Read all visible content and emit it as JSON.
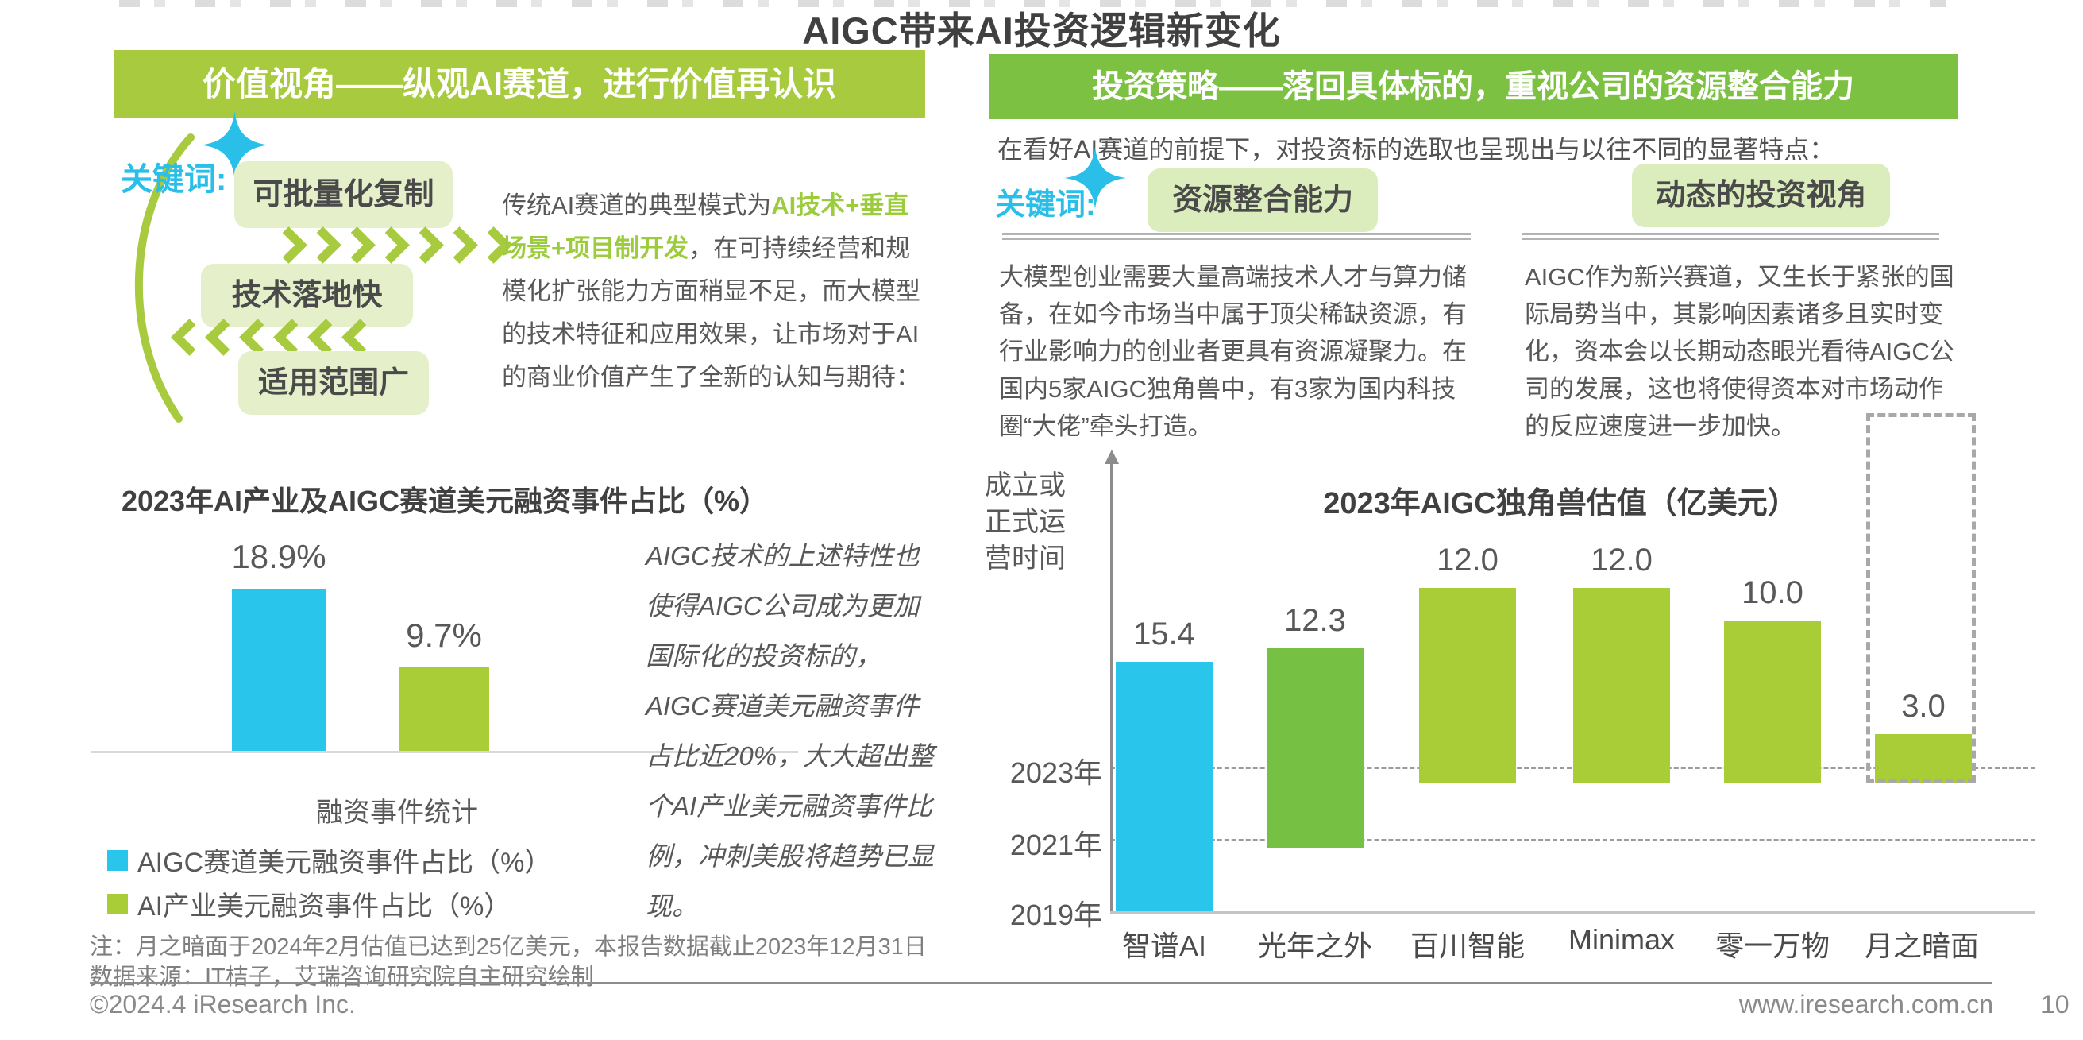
{
  "page": {
    "title": "AIGC带来AI投资逻辑新变化",
    "colors": {
      "left_header_bg": "#a7ca3e",
      "right_header_bg": "#7cc142",
      "accent_cyan": "#29bfe8",
      "bar_cyan": "#2ac5ea",
      "bar_green_mid": "#76c143",
      "bar_green_light": "#a9cd36",
      "keyword_box_bg_left": "#e5f0cb",
      "keyword_box_bg_right": "#dcedbd",
      "text_dark": "#595757",
      "text_gray": "#7f7f7f"
    },
    "icons": {
      "left_sparkle": "sparkle-icon",
      "right_sparkle": "sparkle-icon",
      "arc": "arc-decoration",
      "chevrons_forward": "chevrons-right",
      "chevrons_backward": "chevrons-left",
      "y_axis_arrow": "up-arrow-icon"
    }
  },
  "left_panel": {
    "header": "价值视角——纵观AI赛道，进行价值再认识",
    "keyword_label": "关键词:",
    "keywords": [
      "可批量化复制",
      "技术落地快",
      "适用范围广"
    ],
    "paragraph": {
      "before": "传统AI赛道的典型模式为",
      "highlight": "AI技术+垂直场景+项目制开发",
      "after": "，在可持续经营和规模化扩张能力方面稍显不足，而大模型的技术特征和应用效果，让市场对于AI的商业价值产生了全新的认知与期待："
    }
  },
  "right_panel": {
    "header": "投资策略——落回具体标的，重视公司的资源整合能力",
    "intro": "在看好AI赛道的前提下，对投资标的选取也呈现出与以往不同的显著特点：",
    "keyword_label": "关键词:",
    "keywords": [
      "资源整合能力",
      "动态的投资视角"
    ],
    "paragraph_left": "大模型创业需要大量高端技术人才与算力储备，在如今市场当中属于顶尖稀缺资源，有行业影响力的创业者更具有资源凝聚力。在国内5家AIGC独角兽中，有3家为国内科技圈“大佬”牵头打造。",
    "paragraph_right": "AIGC作为新兴赛道，又生长于紧张的国际局势当中，其影响因素诸多且实时变化，资本会以长期动态眼光看待AIGC公司的发展，这也将使得资本对市场动作的反应速度进一步加快。"
  },
  "chart_data": [
    {
      "type": "bar",
      "title": "2023年AI产业及AIGC赛道美元融资事件占比（%）",
      "categories": [
        "AIGC赛道",
        "AI产业"
      ],
      "values": [
        18.9,
        9.7
      ],
      "value_labels": [
        "18.9%",
        "9.7%"
      ],
      "xlabel": "融资事件统计",
      "ylabel": "",
      "ylim": [
        0,
        20
      ],
      "grid": false,
      "bar_colors": [
        "#2ac5ea",
        "#a9cd36"
      ],
      "legend": [
        "AIGC赛道美元融资事件占比（%）",
        "AI产业美元融资事件占比（%）"
      ],
      "legend_position": "bottom-left",
      "annotation": "AIGC技术的上述特性也使得AIGC公司成为更加国际化的投资标的，AIGC赛道美元融资事件占比近20%，大大超出整个AI产业美元融资事件比例，冲刺美股将趋势已显现。"
    },
    {
      "type": "bar",
      "title": "2023年AIGC独角兽估值（亿美元）",
      "ylabel": "成立或正式运营时间",
      "categories": [
        "智谱AI",
        "光年之外",
        "百川智能",
        "Minimax",
        "零一万物",
        "月之暗面"
      ],
      "values": [
        15.4,
        12.3,
        12.0,
        12.0,
        10.0,
        3.0
      ],
      "value_labels": [
        "15.4",
        "12.3",
        "12.0",
        "12.0",
        "10.0",
        "3.0"
      ],
      "bar_start_year": [
        "2019年",
        "2021年",
        "2023年",
        "2023年",
        "2023年",
        "2023年"
      ],
      "y_ticks": [
        "2023年",
        "2021年",
        "2019年"
      ],
      "grid": "dashed-horizontal",
      "bar_colors": [
        "#2ac5ea",
        "#76c143",
        "#a9cd36",
        "#a9cd36",
        "#a9cd36",
        "#a9cd36"
      ],
      "highlighted_category": "月之暗面"
    }
  ],
  "footer": {
    "note1": "注：月之暗面于2024年2月估值已达到25亿美元，本报告数据截止2023年12月31日",
    "note2": "数据来源：IT桔子，艾瑞咨询研究院自主研究绘制",
    "copyright": "©2024.4 iResearch Inc.",
    "website": "www.iresearch.com.cn",
    "page_number": "10"
  }
}
